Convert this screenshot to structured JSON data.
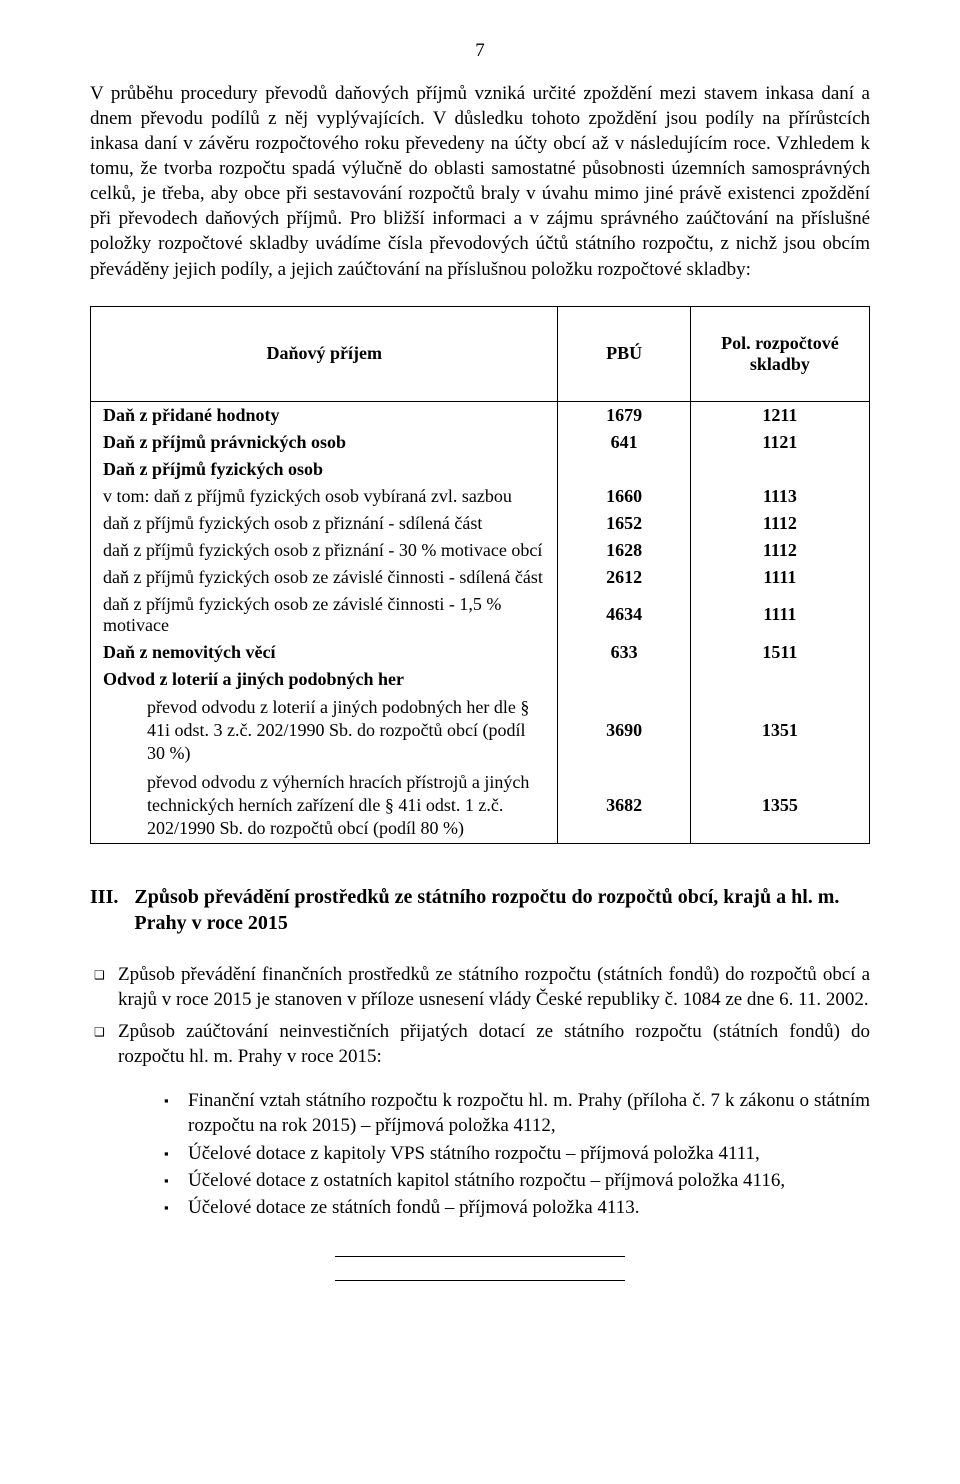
{
  "page_number": "7",
  "para1": "V průběhu procedury převodů daňových příjmů vzniká určité zpoždění mezi stavem inkasa daní a dnem převodu podílů z něj vyplývajících. V důsledku tohoto zpoždění jsou podíly na přírůstcích inkasa daní v závěru rozpočtového roku převedeny na účty obcí až v následujícím roce. Vzhledem k tomu, že tvorba rozpočtu spadá výlučně do oblasti samostatné působnosti územních samosprávných celků, je třeba, aby obce při sestavování rozpočtů braly v úvahu mimo jiné právě existenci zpoždění při převodech daňových příjmů. Pro bližší informaci a v zájmu správného zaúčtování na příslušné položky rozpočtové skladby uvádíme čísla převodových účtů státního rozpočtu, z nichž jsou obcím převáděny jejich podíly, a jejich zaúčtování na příslušnou položku rozpočtové skladby:",
  "table": {
    "type": "table",
    "columns": [
      "Daňový příjem",
      "PBÚ",
      "Pol. rozpočtové skladby"
    ],
    "col_widths_pct": [
      60,
      17,
      23
    ],
    "border_color": "#000000",
    "header_fontsize": 18,
    "body_fontsize": 18,
    "rows": [
      {
        "name": "Daň z přidané hodnoty",
        "pbu": "1679",
        "pol": "1211",
        "bold": true
      },
      {
        "name": "Daň z příjmů právnických osob",
        "pbu": "641",
        "pol": "1121",
        "bold": true
      },
      {
        "name": "Daň z příjmů fyzických osob",
        "pbu": "",
        "pol": "",
        "bold": true
      },
      {
        "name": "v tom: daň z příjmů fyzických osob vybíraná zvl. sazbou",
        "pbu": "1660",
        "pol": "1113",
        "indent": 1
      },
      {
        "name": "daň z příjmů fyzických osob z přiznání - sdílená část",
        "pbu": "1652",
        "pol": "1112",
        "indent": 2
      },
      {
        "name": "daň z příjmů fyzických osob z přiznání  - 30 % motivace obcí",
        "pbu": "1628",
        "pol": "1112",
        "indent": 2
      },
      {
        "name": "daň z příjmů fyzických osob ze závislé činnosti - sdílená část",
        "pbu": "2612",
        "pol": "1111",
        "indent": 2
      },
      {
        "name": "daň z příjmů fyzických osob ze závislé činnosti - 1,5 % motivace",
        "pbu": "4634",
        "pol": "1111",
        "indent": 2
      },
      {
        "name": "Daň z nemovitých věcí",
        "pbu": "633",
        "pol": "1511",
        "bold": true
      },
      {
        "name": "Odvod z loterií a jiných podobných her",
        "pbu": "",
        "pol": "",
        "bold": true
      },
      {
        "name": "převod odvodu z loterií a jiných podobných her dle § 41i odst. 3 z.č. 202/1990 Sb. do rozpočtů obcí (podíl 30 %)",
        "pbu": "3690",
        "pol": "1351",
        "indent": 3,
        "multiline": true
      },
      {
        "name": "převod odvodu z výherních hracích přístrojů a jiných technických herních zařízení dle § 41i odst. 1 z.č. 202/1990 Sb. do rozpočtů obcí (podíl 80 %)",
        "pbu": "3682",
        "pol": "1355",
        "indent": 3,
        "multiline": true
      }
    ]
  },
  "section3": {
    "number": "III.",
    "title": "Způsob převádění prostředků ze státního rozpočtu do rozpočtů obcí, krajů a hl. m. Prahy v roce 2015"
  },
  "bullets": [
    "Způsob převádění finančních prostředků ze státního rozpočtu (státních fondů) do rozpočtů obcí a krajů v roce 2015 je stanoven v příloze usnesení vlády České republiky č. 1084 ze dne 6. 11. 2002.",
    "Způsob zaúčtování neinvestičních přijatých dotací ze státního rozpočtu (státních fondů) do rozpočtu hl. m. Prahy v roce 2015:"
  ],
  "squares": [
    "Finanční vztah státního rozpočtu k rozpočtu hl. m. Prahy (příloha č. 7 k zákonu o státním rozpočtu na rok 2015) – příjmová položka 4112,",
    "Účelové dotace z kapitoly VPS státního rozpočtu – příjmová položka 4111,",
    "Účelové dotace z ostatních kapitol státního rozpočtu – příjmová položka 4116,",
    "Účelové dotace ze státních fondů – příjmová položka 4113."
  ]
}
